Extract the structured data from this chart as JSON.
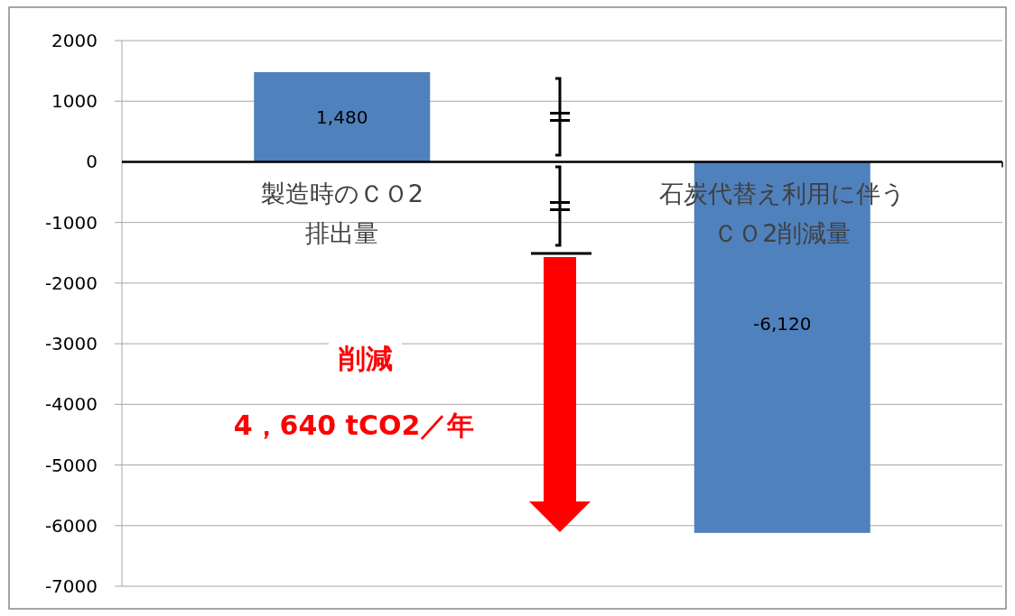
{
  "chart_data": {
    "type": "bar",
    "categories": [
      "製造時のＣＯ2排出量",
      "石炭代替え利用に伴うＣＯ2削減量"
    ],
    "values": [
      1480,
      -6120
    ],
    "value_labels": [
      "1,480",
      "-6,120"
    ],
    "color": "#4f81bd",
    "ylim": [
      -7000,
      2000
    ],
    "yticks": [
      -7000,
      -6000,
      -5000,
      -4000,
      -3000,
      -2000,
      -1000,
      0,
      1000,
      2000
    ],
    "grid": "y",
    "annotations": [
      "削減",
      "4，640 tCO2／年"
    ]
  }
}
